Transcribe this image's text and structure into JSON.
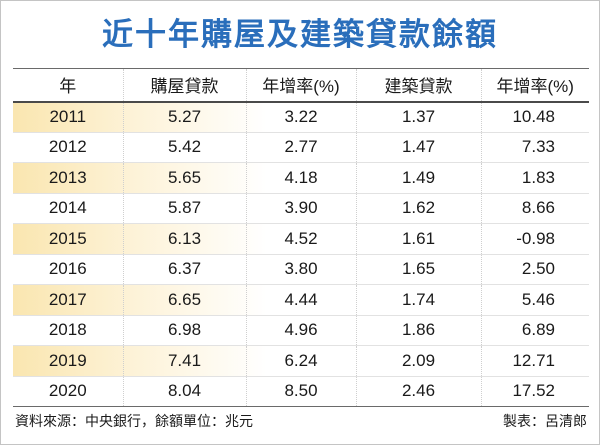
{
  "colors": {
    "title": "#2a6ebb",
    "row_highlight": "#fae6b0"
  },
  "chart_data": {
    "type": "table",
    "title": "近十年購屋及建築貸款餘額",
    "columns": [
      "年",
      "購屋貸款",
      "年增率(%)",
      "建築貸款",
      "年增率(%)"
    ],
    "rows": [
      [
        "2011",
        "5.27",
        "3.22",
        "1.37",
        "10.48"
      ],
      [
        "2012",
        "5.42",
        "2.77",
        "1.47",
        "7.33"
      ],
      [
        "2013",
        "5.65",
        "4.18",
        "1.49",
        "1.83"
      ],
      [
        "2014",
        "5.87",
        "3.90",
        "1.62",
        "8.66"
      ],
      [
        "2015",
        "6.13",
        "4.52",
        "1.61",
        "-0.98"
      ],
      [
        "2016",
        "6.37",
        "3.80",
        "1.65",
        "2.50"
      ],
      [
        "2017",
        "6.65",
        "4.44",
        "1.74",
        "5.46"
      ],
      [
        "2018",
        "6.98",
        "4.96",
        "1.86",
        "6.89"
      ],
      [
        "2019",
        "7.41",
        "6.24",
        "2.09",
        "12.71"
      ],
      [
        "2020",
        "8.04",
        "8.50",
        "2.46",
        "17.52"
      ]
    ]
  },
  "footer": {
    "source": "資料來源：中央銀行，餘額單位：兆元",
    "author": "製表：呂清郎"
  }
}
